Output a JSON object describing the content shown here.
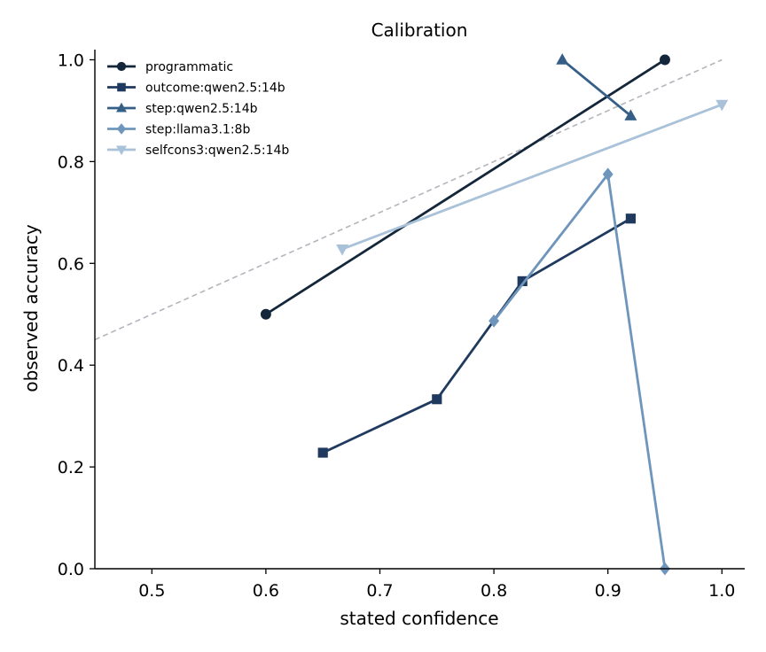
{
  "chart_data": {
    "type": "line",
    "title": "Calibration",
    "xlabel": "stated confidence",
    "ylabel": "observed accuracy",
    "xlim": [
      0.45,
      1.02
    ],
    "ylim": [
      0.0,
      1.02
    ],
    "xticks": [
      0.5,
      0.6,
      0.7,
      0.8,
      0.9,
      1.0
    ],
    "yticks": [
      0.0,
      0.2,
      0.4,
      0.6,
      0.8,
      1.0
    ],
    "xtick_labels": [
      "0.5",
      "0.6",
      "0.7",
      "0.8",
      "0.9",
      "1.0"
    ],
    "ytick_labels": [
      "0.0",
      "0.2",
      "0.4",
      "0.6",
      "0.8",
      "1.0"
    ],
    "grid": false,
    "legend_position": "top-left",
    "reference_line": {
      "points": [
        [
          0.45,
          0.45
        ],
        [
          1.0,
          1.0
        ]
      ],
      "color": "#b4b4bc",
      "style": "dashed"
    },
    "series": [
      {
        "name": "programmatic",
        "color": "#13263a",
        "marker": "circle",
        "points": [
          [
            0.6,
            0.5
          ],
          [
            0.95,
            1.0
          ]
        ]
      },
      {
        "name": "outcome:qwen2.5:14b",
        "color": "#1f3a5e",
        "marker": "square",
        "points": [
          [
            0.65,
            0.228
          ],
          [
            0.75,
            0.333
          ],
          [
            0.825,
            0.565
          ],
          [
            0.92,
            0.688
          ]
        ]
      },
      {
        "name": "step:qwen2.5:14b",
        "color": "#365f88",
        "marker": "triangle-up",
        "points": [
          [
            0.86,
            1.0
          ],
          [
            0.92,
            0.89
          ]
        ]
      },
      {
        "name": "step:llama3.1:8b",
        "color": "#6e95bb",
        "marker": "diamond",
        "points": [
          [
            0.8,
            0.487
          ],
          [
            0.9,
            0.775
          ],
          [
            0.95,
            0.0
          ]
        ]
      },
      {
        "name": "selfcons3:qwen2.5:14b",
        "color": "#a9c1d9",
        "marker": "triangle-down",
        "points": [
          [
            0.667,
            0.628
          ],
          [
            1.0,
            0.912
          ]
        ]
      }
    ]
  }
}
